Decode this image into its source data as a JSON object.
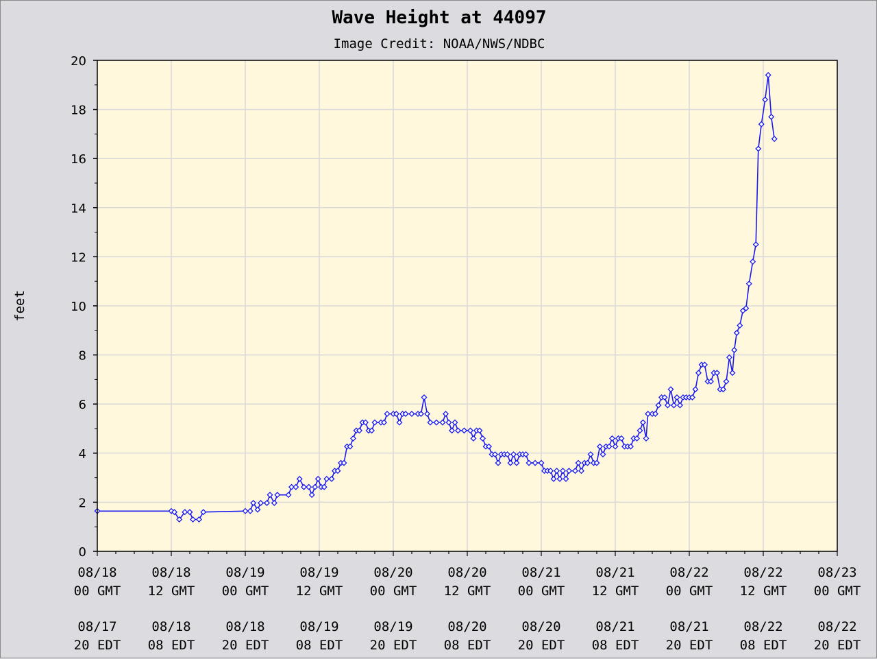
{
  "chart_data": {
    "type": "line",
    "title": "Wave Height at 44097",
    "subtitle": "Image Credit: NOAA/NWS/NDBC",
    "xlabel": "",
    "ylabel": "feet",
    "ylim": [
      0,
      20
    ],
    "yticks": [
      "0",
      "2",
      "4",
      "6",
      "8",
      "10",
      "12",
      "14",
      "16",
      "18",
      "20"
    ],
    "xlim_hours": [
      0,
      120
    ],
    "xticks_gmt": [
      {
        "date": "08/18",
        "time": "00 GMT"
      },
      {
        "date": "08/18",
        "time": "12 GMT"
      },
      {
        "date": "08/19",
        "time": "00 GMT"
      },
      {
        "date": "08/19",
        "time": "12 GMT"
      },
      {
        "date": "08/20",
        "time": "00 GMT"
      },
      {
        "date": "08/20",
        "time": "12 GMT"
      },
      {
        "date": "08/21",
        "time": "00 GMT"
      },
      {
        "date": "08/21",
        "time": "12 GMT"
      },
      {
        "date": "08/22",
        "time": "00 GMT"
      },
      {
        "date": "08/22",
        "time": "12 GMT"
      },
      {
        "date": "08/23",
        "time": "00 GMT"
      }
    ],
    "xticks_edt": [
      {
        "date": "08/17",
        "time": "20 EDT"
      },
      {
        "date": "08/18",
        "time": "08 EDT"
      },
      {
        "date": "08/18",
        "time": "20 EDT"
      },
      {
        "date": "08/19",
        "time": "08 EDT"
      },
      {
        "date": "08/19",
        "time": "20 EDT"
      },
      {
        "date": "08/20",
        "time": "08 EDT"
      },
      {
        "date": "08/20",
        "time": "20 EDT"
      },
      {
        "date": "08/21",
        "time": "08 EDT"
      },
      {
        "date": "08/21",
        "time": "20 EDT"
      },
      {
        "date": "08/22",
        "time": "08 EDT"
      },
      {
        "date": "08/22",
        "time": "20 EDT"
      }
    ],
    "grid": true,
    "colors": {
      "line": "#1a1aee",
      "plot_bg": "#fff8dd",
      "grid": "#d8d8d8",
      "page_bg": "#dcdbdf"
    },
    "series": [
      {
        "points": [
          [
            0,
            1.64
          ],
          [
            12,
            1.64
          ],
          [
            12.5,
            1.6
          ],
          [
            13.3,
            1.3
          ],
          [
            14.2,
            1.6
          ],
          [
            15,
            1.6
          ],
          [
            15.5,
            1.3
          ],
          [
            16.5,
            1.3
          ],
          [
            17.2,
            1.6
          ],
          [
            24,
            1.64
          ],
          [
            24.8,
            1.64
          ],
          [
            25.3,
            1.97
          ],
          [
            26,
            1.7
          ],
          [
            26.5,
            1.97
          ],
          [
            27.5,
            1.97
          ],
          [
            28,
            2.3
          ],
          [
            28.7,
            1.97
          ],
          [
            29.2,
            2.3
          ],
          [
            31,
            2.3
          ],
          [
            31.5,
            2.62
          ],
          [
            32.2,
            2.62
          ],
          [
            32.8,
            2.95
          ],
          [
            33.5,
            2.62
          ],
          [
            34.3,
            2.62
          ],
          [
            34.8,
            2.3
          ],
          [
            35.3,
            2.62
          ],
          [
            35.8,
            2.95
          ],
          [
            36.3,
            2.62
          ],
          [
            36.8,
            2.62
          ],
          [
            37.2,
            2.95
          ],
          [
            38,
            2.95
          ],
          [
            38.5,
            3.28
          ],
          [
            39,
            3.28
          ],
          [
            39.5,
            3.6
          ],
          [
            40,
            3.6
          ],
          [
            40.5,
            4.27
          ],
          [
            41,
            4.27
          ],
          [
            41.5,
            4.6
          ],
          [
            42,
            4.92
          ],
          [
            42.5,
            4.92
          ],
          [
            43,
            5.25
          ],
          [
            43.5,
            5.25
          ],
          [
            44,
            4.92
          ],
          [
            44.5,
            4.92
          ],
          [
            45,
            5.25
          ],
          [
            46,
            5.25
          ],
          [
            46.5,
            5.25
          ],
          [
            47,
            5.6
          ],
          [
            48,
            5.6
          ],
          [
            48.5,
            5.6
          ],
          [
            49,
            5.25
          ],
          [
            49.5,
            5.6
          ],
          [
            50,
            5.6
          ],
          [
            51,
            5.6
          ],
          [
            52,
            5.6
          ],
          [
            52.5,
            5.6
          ],
          [
            53,
            6.27
          ],
          [
            53.5,
            5.6
          ],
          [
            54,
            5.25
          ],
          [
            55,
            5.25
          ],
          [
            56,
            5.25
          ],
          [
            56.5,
            5.6
          ],
          [
            57,
            5.25
          ],
          [
            57.5,
            4.92
          ],
          [
            58,
            5.25
          ],
          [
            58.5,
            4.92
          ],
          [
            59.5,
            4.92
          ],
          [
            60.5,
            4.92
          ],
          [
            61,
            4.6
          ],
          [
            61.5,
            4.92
          ],
          [
            62,
            4.92
          ],
          [
            62.5,
            4.6
          ],
          [
            63,
            4.27
          ],
          [
            63.5,
            4.27
          ],
          [
            64,
            3.95
          ],
          [
            64.5,
            3.95
          ],
          [
            65,
            3.6
          ],
          [
            65.5,
            3.95
          ],
          [
            66,
            3.95
          ],
          [
            66.5,
            3.95
          ],
          [
            67,
            3.6
          ],
          [
            67.5,
            3.95
          ],
          [
            68,
            3.6
          ],
          [
            68.5,
            3.95
          ],
          [
            69,
            3.95
          ],
          [
            69.5,
            3.95
          ],
          [
            70,
            3.6
          ],
          [
            71,
            3.6
          ],
          [
            72,
            3.6
          ],
          [
            72.5,
            3.28
          ],
          [
            73,
            3.28
          ],
          [
            73.5,
            3.28
          ],
          [
            74,
            2.95
          ],
          [
            74.5,
            3.28
          ],
          [
            75,
            2.95
          ],
          [
            75.5,
            3.28
          ],
          [
            76,
            2.95
          ],
          [
            76.5,
            3.28
          ],
          [
            77.5,
            3.28
          ],
          [
            78,
            3.6
          ],
          [
            78.5,
            3.28
          ],
          [
            79,
            3.6
          ],
          [
            79.5,
            3.6
          ],
          [
            80,
            3.95
          ],
          [
            80.5,
            3.6
          ],
          [
            81,
            3.6
          ],
          [
            81.5,
            4.27
          ],
          [
            82,
            3.95
          ],
          [
            82.5,
            4.27
          ],
          [
            83,
            4.27
          ],
          [
            83.5,
            4.6
          ],
          [
            84,
            4.27
          ],
          [
            84.5,
            4.6
          ],
          [
            85,
            4.6
          ],
          [
            85.5,
            4.27
          ],
          [
            86,
            4.27
          ],
          [
            86.5,
            4.27
          ],
          [
            87,
            4.6
          ],
          [
            87.5,
            4.6
          ],
          [
            88,
            4.92
          ],
          [
            88.5,
            5.25
          ],
          [
            89,
            4.6
          ],
          [
            89.3,
            5.6
          ],
          [
            90,
            5.6
          ],
          [
            90.5,
            5.6
          ],
          [
            91,
            5.95
          ],
          [
            91.5,
            6.27
          ],
          [
            92,
            6.27
          ],
          [
            92.5,
            5.95
          ],
          [
            93,
            6.6
          ],
          [
            93.5,
            5.95
          ],
          [
            94,
            6.27
          ],
          [
            94.5,
            5.95
          ],
          [
            95,
            6.27
          ],
          [
            95.5,
            6.27
          ],
          [
            96,
            6.27
          ],
          [
            96.5,
            6.27
          ],
          [
            97,
            6.6
          ],
          [
            97.5,
            7.27
          ],
          [
            98,
            7.6
          ],
          [
            98.5,
            7.6
          ],
          [
            99,
            6.92
          ],
          [
            99.5,
            6.92
          ],
          [
            100,
            7.27
          ],
          [
            100.5,
            7.27
          ],
          [
            101,
            6.6
          ],
          [
            101.5,
            6.6
          ],
          [
            102,
            6.92
          ],
          [
            102.5,
            7.9
          ],
          [
            103,
            7.27
          ],
          [
            103.3,
            8.2
          ],
          [
            103.7,
            8.9
          ],
          [
            104.2,
            9.2
          ],
          [
            104.7,
            9.8
          ],
          [
            105.2,
            9.9
          ],
          [
            105.7,
            10.9
          ],
          [
            106.3,
            11.8
          ],
          [
            106.8,
            12.5
          ],
          [
            107.2,
            16.4
          ],
          [
            107.7,
            17.4
          ],
          [
            108.3,
            18.4
          ],
          [
            108.8,
            19.4
          ],
          [
            109.3,
            17.7
          ],
          [
            109.8,
            16.8
          ]
        ]
      }
    ]
  }
}
